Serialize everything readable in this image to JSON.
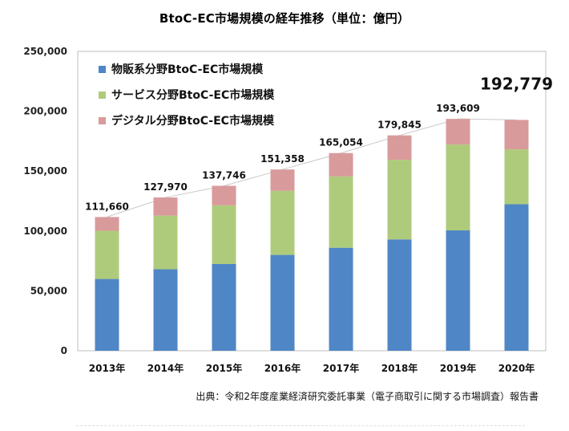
{
  "chart_data": {
    "type": "bar",
    "stacked": true,
    "title": "BtoC-EC市場規模の経年推移（単位：億円）",
    "categories": [
      "2013年",
      "2014年",
      "2015年",
      "2016年",
      "2017年",
      "2018年",
      "2019年",
      "2020年"
    ],
    "series": [
      {
        "name": "物販系分野BtoC-EC市場規模",
        "color": "#4f86c6",
        "values": [
          59931,
          68043,
          72398,
          80043,
          86008,
          92992,
          100515,
          122333
        ]
      },
      {
        "name": "サービス分野BtoC-EC市場規模",
        "color": "#aecb7b",
        "values": [
          40290,
          44816,
          49014,
          53532,
          59568,
          66471,
          71672,
          45832
        ]
      },
      {
        "name": "デジタル分野BtoC-EC市場規模",
        "color": "#d99a9b",
        "values": [
          11439,
          15111,
          16334,
          17783,
          19478,
          20382,
          21422,
          24614
        ]
      }
    ],
    "total_labels": [
      "111,660",
      "127,970",
      "137,746",
      "151,358",
      "165,054",
      "179,845",
      "193,609",
      "192,779"
    ],
    "yticks": [
      0,
      50000,
      100000,
      150000,
      200000,
      250000
    ],
    "ytick_labels": [
      "0",
      "50,000",
      "100,000",
      "150,000",
      "200,000",
      "250,000"
    ],
    "ylim": [
      0,
      250000
    ],
    "grid": false,
    "legend_position": "top-left",
    "trend_line": true
  },
  "source": "出典：令和2年度産業経済研究委託事業（電子商取引に関する市場調査）報告書"
}
